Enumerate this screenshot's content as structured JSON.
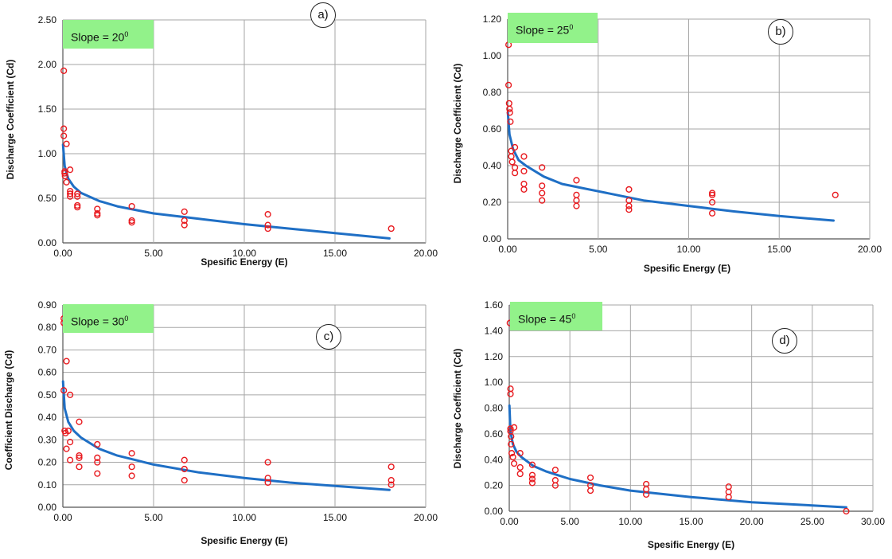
{
  "chart_data": [
    {
      "id": "a",
      "type": "scatter",
      "panel_label": "a)",
      "slope_label": "Slope = 20",
      "slope_sup": "0",
      "xlabel": "Spesific Energy (E)",
      "ylabel": "Discharge Coefficient (Cd)",
      "xlim": [
        0,
        20
      ],
      "ylim": [
        0,
        2.5
      ],
      "xticks": [
        0,
        5,
        10,
        15,
        20
      ],
      "yticks": [
        0,
        0.5,
        1.0,
        1.5,
        2.0,
        2.5
      ],
      "tick_labels_x": [
        "0.00",
        "5.00",
        "10.00",
        "15.00",
        "20.00"
      ],
      "tick_labels_y": [
        "0.00",
        "0.50",
        "1.00",
        "1.50",
        "2.00",
        "2.50"
      ],
      "grid": true,
      "marker_color": "#e8191e",
      "line_color": "#1f6fc5",
      "points": [
        [
          0.05,
          1.93
        ],
        [
          0.05,
          1.28
        ],
        [
          0.05,
          1.2
        ],
        [
          0.1,
          0.8
        ],
        [
          0.1,
          0.78
        ],
        [
          0.12,
          0.75
        ],
        [
          0.2,
          1.11
        ],
        [
          0.2,
          0.68
        ],
        [
          0.4,
          0.82
        ],
        [
          0.4,
          0.58
        ],
        [
          0.4,
          0.55
        ],
        [
          0.4,
          0.52
        ],
        [
          0.8,
          0.55
        ],
        [
          0.8,
          0.52
        ],
        [
          0.8,
          0.42
        ],
        [
          0.8,
          0.4
        ],
        [
          1.9,
          0.38
        ],
        [
          1.9,
          0.33
        ],
        [
          1.9,
          0.31
        ],
        [
          3.8,
          0.41
        ],
        [
          3.8,
          0.25
        ],
        [
          3.8,
          0.23
        ],
        [
          6.7,
          0.35
        ],
        [
          6.7,
          0.25
        ],
        [
          6.7,
          0.2
        ],
        [
          11.3,
          0.32
        ],
        [
          11.3,
          0.2
        ],
        [
          11.3,
          0.16
        ],
        [
          18.1,
          0.16
        ]
      ],
      "curve": [
        [
          0.01,
          1.1
        ],
        [
          0.1,
          0.86
        ],
        [
          0.3,
          0.72
        ],
        [
          0.6,
          0.63
        ],
        [
          1,
          0.56
        ],
        [
          2,
          0.47
        ],
        [
          3,
          0.41
        ],
        [
          4,
          0.37
        ],
        [
          5,
          0.33
        ],
        [
          7.5,
          0.27
        ],
        [
          10,
          0.21
        ],
        [
          12.5,
          0.16
        ],
        [
          15,
          0.11
        ],
        [
          18,
          0.05
        ]
      ]
    },
    {
      "id": "b",
      "type": "scatter",
      "panel_label": "b)",
      "slope_label": "Slope = 25",
      "slope_sup": "0",
      "xlabel": "Spesific Energy (E)",
      "ylabel": "Discharge Coefficient (Cd)",
      "xlim": [
        0,
        20
      ],
      "ylim": [
        0,
        1.2
      ],
      "xticks": [
        0,
        5,
        10,
        15,
        20
      ],
      "yticks": [
        0,
        0.2,
        0.4,
        0.6,
        0.8,
        1.0,
        1.2
      ],
      "tick_labels_x": [
        "0.00",
        "5.00",
        "10.00",
        "15.00",
        "20.00"
      ],
      "tick_labels_y": [
        "0.00",
        "0.20",
        "0.40",
        "0.60",
        "0.80",
        "1.00",
        "1.20"
      ],
      "grid": true,
      "marker_color": "#e8191e",
      "line_color": "#1f6fc5",
      "points": [
        [
          0.05,
          1.06
        ],
        [
          0.05,
          0.84
        ],
        [
          0.08,
          0.74
        ],
        [
          0.1,
          0.71
        ],
        [
          0.12,
          0.69
        ],
        [
          0.15,
          0.64
        ],
        [
          0.2,
          0.48
        ],
        [
          0.2,
          0.45
        ],
        [
          0.25,
          0.42
        ],
        [
          0.4,
          0.5
        ],
        [
          0.4,
          0.39
        ],
        [
          0.4,
          0.36
        ],
        [
          0.9,
          0.45
        ],
        [
          0.9,
          0.37
        ],
        [
          0.9,
          0.3
        ],
        [
          0.9,
          0.27
        ],
        [
          1.9,
          0.39
        ],
        [
          1.9,
          0.29
        ],
        [
          1.9,
          0.25
        ],
        [
          1.9,
          0.21
        ],
        [
          3.8,
          0.32
        ],
        [
          3.8,
          0.24
        ],
        [
          3.8,
          0.21
        ],
        [
          3.8,
          0.18
        ],
        [
          6.7,
          0.27
        ],
        [
          6.7,
          0.21
        ],
        [
          6.7,
          0.18
        ],
        [
          6.7,
          0.16
        ],
        [
          11.3,
          0.25
        ],
        [
          11.3,
          0.24
        ],
        [
          11.3,
          0.2
        ],
        [
          11.3,
          0.14
        ],
        [
          18.1,
          0.24
        ]
      ],
      "curve": [
        [
          0.01,
          0.69
        ],
        [
          0.1,
          0.57
        ],
        [
          0.3,
          0.49
        ],
        [
          0.6,
          0.43
        ],
        [
          1,
          0.4
        ],
        [
          2,
          0.34
        ],
        [
          3,
          0.3
        ],
        [
          4,
          0.28
        ],
        [
          5,
          0.26
        ],
        [
          7.5,
          0.21
        ],
        [
          10,
          0.18
        ],
        [
          12.5,
          0.15
        ],
        [
          15,
          0.125
        ],
        [
          18,
          0.1
        ]
      ]
    },
    {
      "id": "c",
      "type": "scatter",
      "panel_label": "c)",
      "slope_label": "Slope = 30",
      "slope_sup": "0",
      "xlabel": "Spesific Energy (E)",
      "ylabel": "Coefficient Discharge  (Cd)",
      "xlim": [
        0,
        20
      ],
      "ylim": [
        0,
        0.9
      ],
      "xticks": [
        0,
        5,
        10,
        15,
        20
      ],
      "yticks": [
        0,
        0.1,
        0.2,
        0.3,
        0.4,
        0.5,
        0.6,
        0.7,
        0.8,
        0.9
      ],
      "tick_labels_x": [
        "0.00",
        "5.00",
        "10.00",
        "15.00",
        "20.00"
      ],
      "tick_labels_y": [
        "0.00",
        "0.10",
        "0.20",
        "0.30",
        "0.40",
        "0.50",
        "0.60",
        "0.70",
        "0.80",
        "0.90"
      ],
      "grid": true,
      "marker_color": "#e8191e",
      "line_color": "#1f6fc5",
      "points": [
        [
          0.05,
          0.84
        ],
        [
          0.05,
          0.82
        ],
        [
          0.05,
          0.52
        ],
        [
          0.1,
          0.34
        ],
        [
          0.15,
          0.33
        ],
        [
          0.2,
          0.65
        ],
        [
          0.2,
          0.26
        ],
        [
          0.3,
          0.34
        ],
        [
          0.4,
          0.5
        ],
        [
          0.4,
          0.29
        ],
        [
          0.4,
          0.21
        ],
        [
          0.9,
          0.38
        ],
        [
          0.9,
          0.23
        ],
        [
          0.9,
          0.22
        ],
        [
          0.9,
          0.18
        ],
        [
          1.9,
          0.28
        ],
        [
          1.9,
          0.22
        ],
        [
          1.9,
          0.2
        ],
        [
          1.9,
          0.15
        ],
        [
          3.8,
          0.24
        ],
        [
          3.8,
          0.18
        ],
        [
          3.8,
          0.14
        ],
        [
          6.7,
          0.21
        ],
        [
          6.7,
          0.17
        ],
        [
          6.7,
          0.12
        ],
        [
          11.3,
          0.2
        ],
        [
          11.3,
          0.13
        ],
        [
          11.3,
          0.11
        ],
        [
          18.1,
          0.18
        ],
        [
          18.1,
          0.12
        ],
        [
          18.1,
          0.1
        ]
      ],
      "curve": [
        [
          0.01,
          0.56
        ],
        [
          0.1,
          0.44
        ],
        [
          0.3,
          0.38
        ],
        [
          0.6,
          0.34
        ],
        [
          1,
          0.31
        ],
        [
          2,
          0.26
        ],
        [
          3,
          0.23
        ],
        [
          4,
          0.21
        ],
        [
          5,
          0.19
        ],
        [
          7.5,
          0.155
        ],
        [
          10,
          0.13
        ],
        [
          12.5,
          0.11
        ],
        [
          15,
          0.095
        ],
        [
          18,
          0.077
        ]
      ]
    },
    {
      "id": "d",
      "type": "scatter",
      "panel_label": "d)",
      "slope_label": "Slope = 45",
      "slope_sup": "0",
      "xlabel": "Spesific Energy (E)",
      "ylabel": "Discharge Coefficient (Cd)",
      "xlim": [
        0,
        30
      ],
      "ylim": [
        0,
        1.6
      ],
      "xticks": [
        0,
        5,
        10,
        15,
        20,
        25,
        30
      ],
      "yticks": [
        0,
        0.2,
        0.4,
        0.6,
        0.8,
        1.0,
        1.2,
        1.4,
        1.6
      ],
      "tick_labels_x": [
        "0.00",
        "5.00",
        "10.00",
        "15.00",
        "20.00",
        "25.00",
        "30.00"
      ],
      "tick_labels_y": [
        "0.00",
        "0.20",
        "0.40",
        "0.60",
        "0.80",
        "1.00",
        "1.20",
        "1.40",
        "1.60"
      ],
      "grid": true,
      "marker_color": "#e8191e",
      "line_color": "#1f6fc5",
      "points": [
        [
          0.05,
          1.46
        ],
        [
          0.1,
          0.95
        ],
        [
          0.1,
          0.91
        ],
        [
          0.1,
          0.64
        ],
        [
          0.1,
          0.62
        ],
        [
          0.15,
          0.58
        ],
        [
          0.15,
          0.52
        ],
        [
          0.2,
          0.45
        ],
        [
          0.3,
          0.42
        ],
        [
          0.4,
          0.65
        ],
        [
          0.4,
          0.37
        ],
        [
          0.9,
          0.45
        ],
        [
          0.9,
          0.34
        ],
        [
          0.9,
          0.29
        ],
        [
          1.9,
          0.36
        ],
        [
          1.9,
          0.28
        ],
        [
          1.9,
          0.25
        ],
        [
          1.9,
          0.22
        ],
        [
          3.8,
          0.32
        ],
        [
          3.8,
          0.24
        ],
        [
          3.8,
          0.2
        ],
        [
          6.7,
          0.26
        ],
        [
          6.7,
          0.2
        ],
        [
          6.7,
          0.16
        ],
        [
          11.3,
          0.21
        ],
        [
          11.3,
          0.17
        ],
        [
          11.3,
          0.13
        ],
        [
          18.1,
          0.19
        ],
        [
          18.1,
          0.15
        ],
        [
          18.1,
          0.11
        ],
        [
          27.8,
          0.0
        ]
      ],
      "curve": [
        [
          0.01,
          0.82
        ],
        [
          0.1,
          0.62
        ],
        [
          0.3,
          0.52
        ],
        [
          0.6,
          0.46
        ],
        [
          1,
          0.42
        ],
        [
          2,
          0.35
        ],
        [
          3,
          0.31
        ],
        [
          4,
          0.28
        ],
        [
          5,
          0.25
        ],
        [
          7.5,
          0.2
        ],
        [
          10,
          0.16
        ],
        [
          15,
          0.11
        ],
        [
          20,
          0.07
        ],
        [
          25,
          0.045
        ],
        [
          27.8,
          0.03
        ]
      ]
    }
  ]
}
